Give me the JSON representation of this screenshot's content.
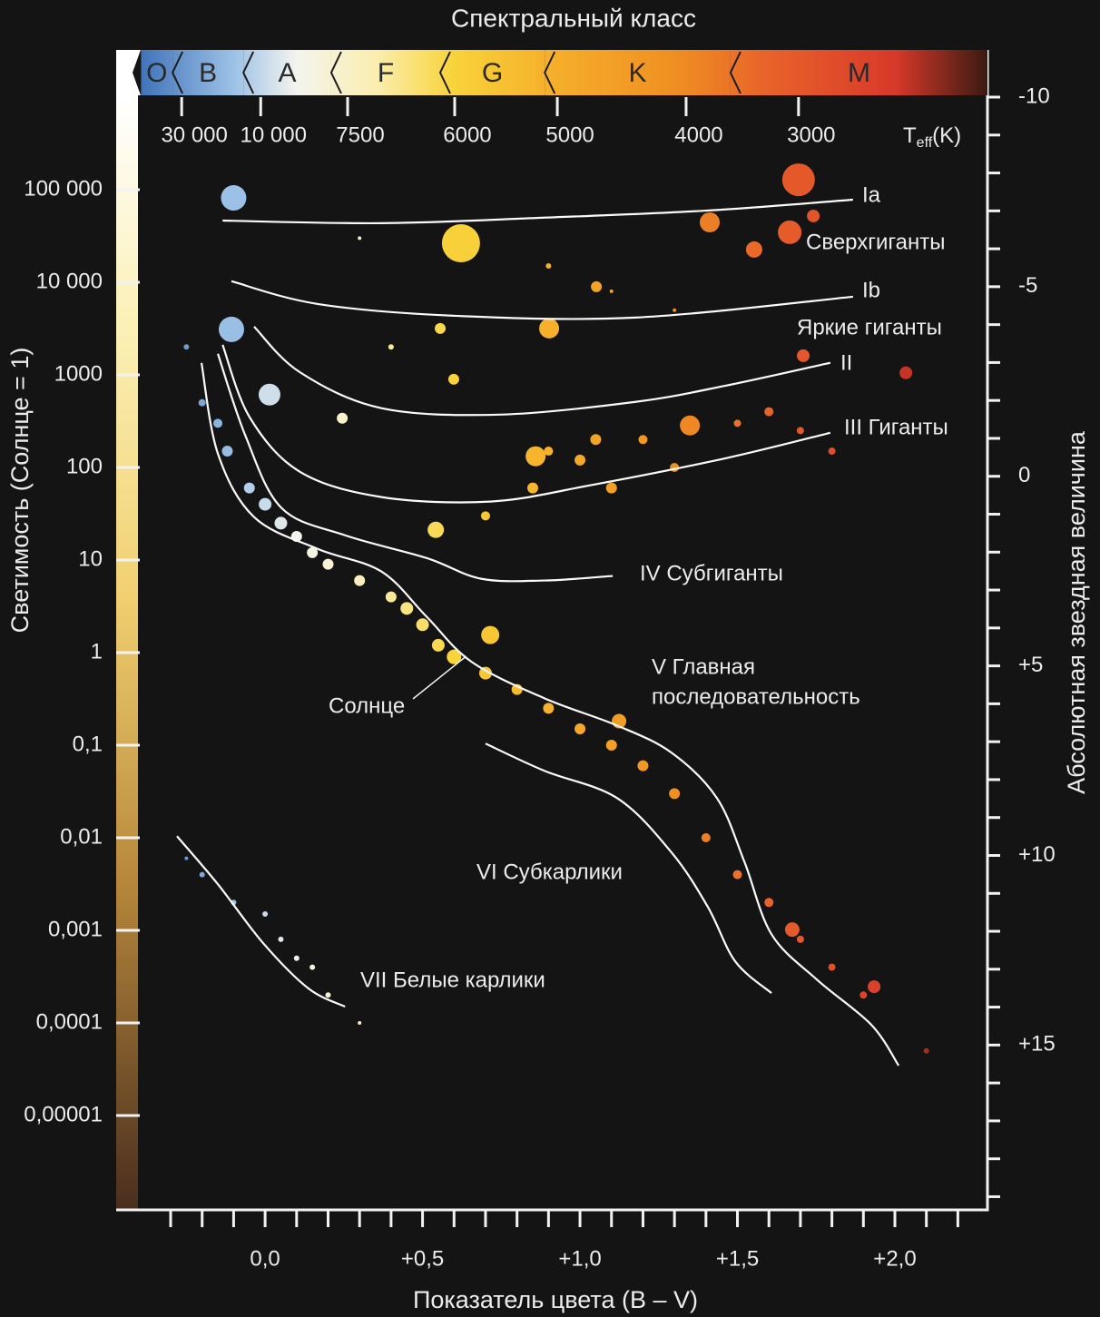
{
  "chart_data": {
    "type": "scatter",
    "title": "Спектральный класс",
    "y_label": "Светимость (Солнце = 1)",
    "y2_label": "Абсолютная звездная  величина",
    "x_label": "Показатель цвета (B – V)",
    "y_log": true,
    "xlim": [
      -0.473,
      2.294
    ],
    "xticks": [
      {
        "value": 0,
        "label": "0,0"
      },
      {
        "value": 0.5,
        "label": "+0,5"
      },
      {
        "value": 1,
        "label": "+1,0"
      },
      {
        "value": 1.5,
        "label": "+1,5"
      },
      {
        "value": 2,
        "label": "+2,0"
      }
    ],
    "xminor": [
      -0.3,
      -0.2,
      -0.1,
      0.1,
      0.2,
      0.3,
      0.4,
      0.6,
      0.7,
      0.8,
      0.9,
      1.1,
      1.2,
      1.3,
      1.4,
      1.6,
      1.7,
      1.8,
      1.9,
      2.1,
      2.2
    ],
    "ylim": [
      1e-06,
      1000000
    ],
    "yticks": [
      {
        "value": 100000,
        "label": "100 000"
      },
      {
        "value": 10000,
        "label": "10 000"
      },
      1000,
      100,
      10,
      1,
      {
        "value": 0.1,
        "label": "0,1"
      },
      {
        "value": 0.01,
        "label": "0,01"
      },
      {
        "value": 0.001,
        "label": "0,001"
      },
      {
        "value": 0.0001,
        "label": "0,0001"
      },
      {
        "value": 1e-05,
        "label": "0,00001"
      }
    ],
    "y2lim": [
      19.3,
      -10
    ],
    "y2ticks": [
      -10,
      -5,
      0,
      {
        "value": 5,
        "label": "+5"
      },
      {
        "value": 10,
        "label": "+10"
      },
      {
        "value": 15,
        "label": "+15"
      }
    ],
    "y2minor": [
      -9,
      -8,
      -7,
      -6,
      -4,
      -3,
      -2,
      -1,
      1,
      2,
      3,
      4,
      6,
      7,
      8,
      9,
      11,
      12,
      13,
      14,
      16,
      17,
      18,
      19
    ],
    "teff_label": {
      "main": "T",
      "sub": "eff",
      "unit": "(K)"
    },
    "temperature_ticks": [
      {
        "value": 30000,
        "label": "30 000",
        "x": -0.265
      },
      {
        "value": 10000,
        "label": "10 000",
        "x": -0.014
      },
      {
        "value": 7500,
        "x": 0.262
      },
      {
        "value": 6000,
        "x": 0.602
      },
      {
        "value": 5000,
        "x": 0.928
      },
      {
        "value": 4000,
        "x": 1.337
      },
      {
        "value": 3000,
        "x": 1.694
      }
    ],
    "spectral_classes": [
      {
        "label": "O",
        "from": -0.394,
        "to": -0.294
      },
      {
        "label": "B",
        "from": -0.294,
        "to": -0.069
      },
      {
        "label": "A",
        "from": -0.069,
        "to": 0.21
      },
      {
        "label": "F",
        "from": 0.21,
        "to": 0.556
      },
      {
        "label": "G",
        "from": 0.556,
        "to": 0.888
      },
      {
        "label": "K",
        "from": 0.888,
        "to": 1.478
      },
      {
        "label": "M",
        "from": 1.478,
        "to": 2.294
      }
    ],
    "colormap": [
      {
        "value": -0.4,
        "color": "#3f72b8"
      },
      {
        "value": -0.1,
        "color": "#9cc1e6"
      },
      {
        "value": 0.1,
        "color": "#f4f4ee"
      },
      {
        "value": 0.35,
        "color": "#fbeeb0"
      },
      {
        "value": 0.6,
        "color": "#f8d33a"
      },
      {
        "value": 0.9,
        "color": "#f6b02b"
      },
      {
        "value": 1.3,
        "color": "#ef8f22"
      },
      {
        "value": 1.6,
        "color": "#e8622a"
      },
      {
        "value": 2.0,
        "color": "#d8392a"
      },
      {
        "value": 2.294,
        "color": "#3a1a12"
      }
    ],
    "curves": [
      {
        "label": "Ia",
        "x": [
          -0.135,
          0.369,
          0.88,
          1.406,
          1.867
        ],
        "y": [
          46400,
          43500,
          49800,
          59600,
          78000
        ]
      },
      {
        "label": "Ib",
        "x": [
          -0.107,
          0.167,
          0.599,
          1.176,
          1.867
        ],
        "y": [
          10260,
          5830,
          4350,
          4160,
          6980
        ]
      },
      {
        "label": "II",
        "x": [
          -0.035,
          0.11,
          0.369,
          0.744,
          1.176,
          1.464,
          1.795
        ],
        "y": [
          3320,
          1070,
          437,
          372,
          511,
          766,
          1350
        ]
      },
      {
        "label": "III Гиганты",
        "x": [
          -0.135,
          -0.049,
          0.11,
          0.369,
          0.715,
          1.032,
          1.464,
          1.795
        ],
        "y": [
          2110,
          348,
          90,
          47.9,
          42.8,
          64.1,
          126,
          237
        ]
      },
      {
        "label": "IV Субгиганты",
        "x": [
          -0.15,
          -0.063,
          0.052,
          0.254,
          0.513,
          0.686,
          0.888,
          1.104
        ],
        "y": [
          1690,
          222,
          36.5,
          18.5,
          10.5,
          6.28,
          6.01,
          6.73
        ]
      },
      {
        "label": [
          "V Главная",
          "последовательность"
        ],
        "x": [
          -0.202,
          -0.15,
          -0.035,
          0.167,
          0.369,
          0.513,
          0.657,
          0.888,
          1.118,
          1.291,
          1.435,
          1.522,
          1.608,
          1.752,
          1.925,
          2.012
        ],
        "y": [
          1346,
          141,
          29.1,
          13.2,
          7.53,
          2.44,
          0.789,
          0.32,
          0.163,
          0.0828,
          0.0268,
          0.00552,
          0.00091,
          0.000294,
          9.55e-05,
          3.46e-05
        ]
      },
      {
        "label": "VI Субкарлики",
        "x": [
          0.7,
          0.888,
          1.118,
          1.291,
          1.406,
          1.493,
          1.608
        ],
        "y": [
          0.104,
          0.0527,
          0.0268,
          0.00692,
          0.00179,
          0.000462,
          0.00021
        ]
      },
      {
        "label": "VII Белые карлики",
        "x": [
          -0.28,
          -0.15,
          -0.006,
          0.138,
          0.254
        ],
        "y": [
          0.0104,
          0.00315,
          0.000726,
          0.000235,
          0.00015
        ]
      }
    ],
    "annotations": [
      "Сверхгиганты",
      "Яркие гиганты"
    ],
    "sun": {
      "label": "Солнце",
      "x": 0.65,
      "y": 1
    },
    "stars": {
      "x": [
        -0.1,
        1.694,
        0.622,
        1.412,
        1.666,
        1.741,
        1.553,
        -0.107,
        0.014,
        0.902,
        1.349,
        2.035,
        1.709,
        1.052,
        0.859,
        1.124,
        1.674,
        1.934,
        0.245,
        0.599,
        0.556,
        0.542,
        0.715,
        -0.25,
        -0.2,
        -0.15,
        -0.12,
        -0.05,
        0.0,
        0.05,
        0.1,
        0.15,
        0.2,
        0.3,
        0.4,
        0.45,
        0.5,
        0.55,
        0.6,
        0.7,
        0.8,
        0.9,
        1.0,
        1.1,
        1.2,
        1.3,
        1.4,
        1.5,
        1.6,
        1.7,
        1.8,
        1.9,
        2.1,
        0.9,
        1.0,
        1.1,
        1.2,
        1.3,
        1.5,
        1.6,
        1.7,
        1.8,
        0.85,
        0.7,
        1.05,
        -0.25,
        -0.2,
        -0.1,
        0.0,
        0.05,
        0.1,
        0.15,
        0.2,
        0.3,
        0.3,
        1.1,
        0.9,
        1.3,
        0.4
      ],
      "values": [
        81600,
        128000,
        26400,
        44400,
        34700,
        52000,
        22600,
        3100,
        612,
        3170,
        284,
        1052,
        1610,
        8950,
        132,
        0.182,
        0.00102,
        0.000246,
        340,
        897,
        3170,
        21.2,
        1.55,
        2000,
        500,
        300,
        150,
        60,
        40,
        25,
        18,
        12,
        9,
        6,
        4,
        3,
        2,
        1.2,
        0.9,
        0.6,
        0.4,
        0.25,
        0.15,
        0.1,
        0.06,
        0.03,
        0.01,
        0.004,
        0.002,
        0.0008,
        0.0004,
        0.0002,
        5e-05,
        150,
        120,
        60,
        200,
        100,
        300,
        400,
        250,
        150,
        60,
        30,
        200,
        0.006,
        0.004,
        0.002,
        0.0015,
        0.0008,
        0.0005,
        0.0004,
        0.0002,
        0.0001,
        30000,
        8000,
        15000,
        5000,
        2000
      ],
      "sizes": [
        14,
        18,
        21,
        11,
        13,
        7,
        9,
        14,
        12,
        11,
        11,
        7,
        7,
        6,
        11,
        8,
        8,
        7,
        6,
        6,
        6,
        9,
        10,
        3,
        4,
        5,
        6,
        6,
        7,
        7,
        6,
        6,
        6,
        6,
        6,
        7,
        7,
        7,
        8,
        7,
        6,
        6,
        6,
        6,
        6,
        6,
        5,
        5,
        5,
        4,
        4,
        4,
        3,
        5,
        6,
        6,
        5,
        5,
        4,
        5,
        4,
        4,
        6,
        5,
        6,
        2,
        3,
        3,
        3,
        3,
        3,
        3,
        3,
        2,
        2,
        2,
        3,
        2,
        3
      ]
    }
  }
}
